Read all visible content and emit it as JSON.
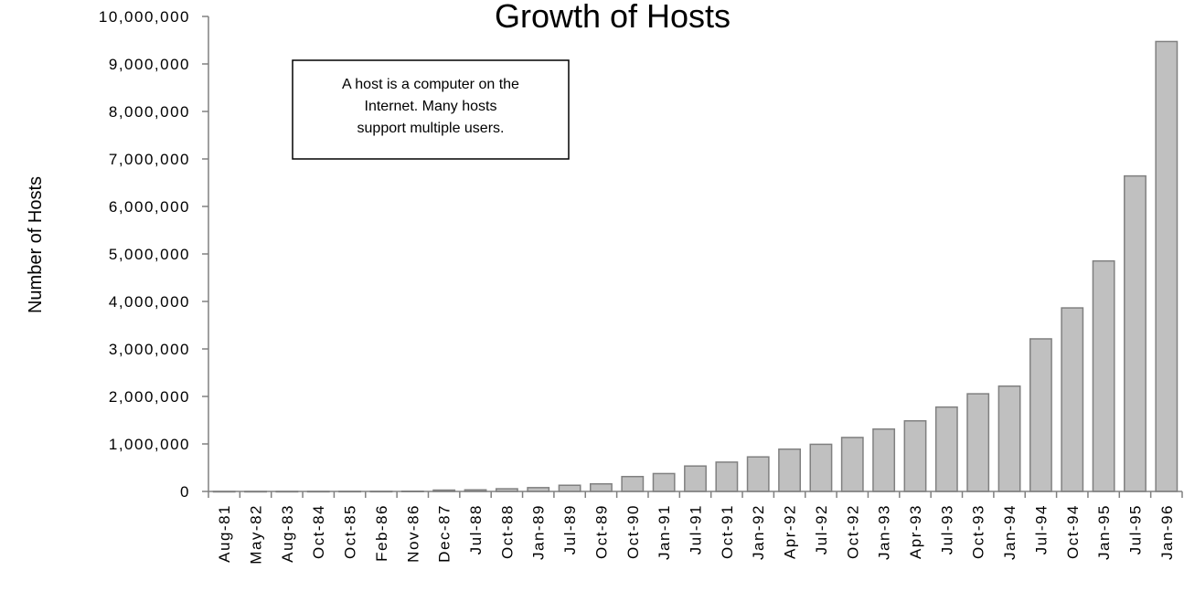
{
  "chart_data": {
    "type": "bar",
    "title": "Growth of Hosts",
    "ylabel": "Number of Hosts",
    "xlabel": "",
    "ylim": [
      0,
      10000000
    ],
    "yticks": [
      "0",
      "1,000,000",
      "2,000,000",
      "3,000,000",
      "4,000,000",
      "5,000,000",
      "6,000,000",
      "7,000,000",
      "8,000,000",
      "9,000,000",
      "10,000,000"
    ],
    "categories": [
      "Aug-81",
      "May-82",
      "Aug-83",
      "Oct-84",
      "Oct-85",
      "Feb-86",
      "Nov-86",
      "Dec-87",
      "Jul-88",
      "Oct-88",
      "Jan-89",
      "Jul-89",
      "Oct-89",
      "Oct-90",
      "Jan-91",
      "Jul-91",
      "Oct-91",
      "Jan-92",
      "Apr-92",
      "Jul-92",
      "Oct-92",
      "Jan-93",
      "Apr-93",
      "Jul-93",
      "Oct-93",
      "Jan-94",
      "Jul-94",
      "Oct-94",
      "Jan-95",
      "Jul-95",
      "Jan-96"
    ],
    "values": [
      213,
      235,
      562,
      1024,
      1961,
      2308,
      5089,
      28174,
      33000,
      56000,
      80000,
      130000,
      159000,
      313000,
      376000,
      535000,
      617000,
      727000,
      890000,
      992000,
      1136000,
      1313000,
      1486000,
      1776000,
      2056000,
      2217000,
      3212000,
      3864000,
      4852000,
      6642000,
      9472000
    ],
    "colors": {
      "bar_fill": "#c0c0c0",
      "bar_stroke": "#808080",
      "axis": "#808080"
    },
    "annotation": {
      "lines": [
        "A host is a computer on the",
        "Internet. Many hosts",
        "support multiple users."
      ]
    },
    "grid": false,
    "legend": "none"
  }
}
